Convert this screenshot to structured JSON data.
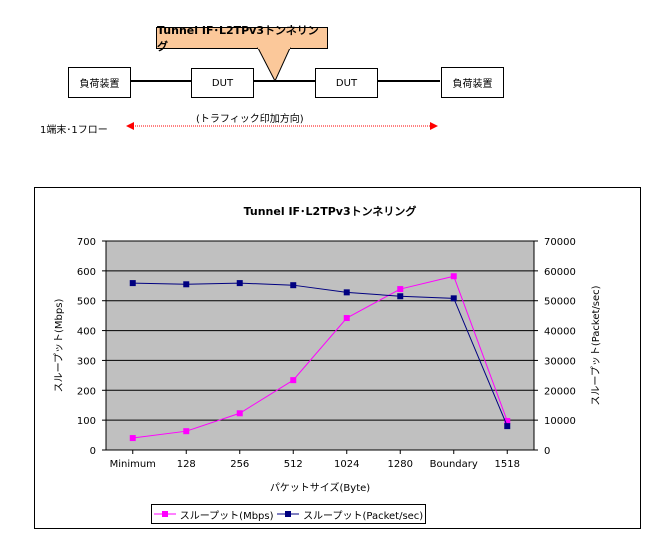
{
  "diagram": {
    "callout_label": "Tunnel IF･L2TPv3トンネリング",
    "nodes": [
      {
        "label": "負荷装置"
      },
      {
        "label": "DUT"
      },
      {
        "label": "DUT"
      },
      {
        "label": "負荷装置"
      }
    ],
    "traffic_direction_label": "(トラフィック印加方向)",
    "flow_label": "1端末･1フロー",
    "arrow_color": "#ff0000",
    "callout_color": "#fbc89a"
  },
  "chart_data": {
    "type": "line",
    "title": "Tunnel IF･L2TPv3トンネリング",
    "xlabel": "パケットサイズ(Byte)",
    "ylabel": "スループット(Mbps)",
    "y2label": "スループット(Packet/sec)",
    "categories": [
      "Minimum",
      "128",
      "256",
      "512",
      "1024",
      "1280",
      "Boundary",
      "1518"
    ],
    "ylim": [
      0,
      700
    ],
    "y2lim": [
      0,
      70000
    ],
    "yticks": [
      "0",
      "100",
      "200",
      "300",
      "400",
      "500",
      "600",
      "700"
    ],
    "y2ticks": [
      "0",
      "10000",
      "20000",
      "30000",
      "40000",
      "50000",
      "60000",
      "70000"
    ],
    "grid": true,
    "plot_background": "#c0c0c0",
    "legend_position": "bottom",
    "series": [
      {
        "name": "スループット(Mbps)",
        "axis": "left",
        "color": "#ff00ff",
        "marker": "square",
        "values": [
          40,
          63,
          123,
          234,
          442,
          539,
          582,
          97
        ]
      },
      {
        "name": "スループット(Packet/sec)",
        "axis": "right",
        "color": "#000080",
        "marker": "square",
        "values": [
          55900,
          55500,
          55900,
          55200,
          52800,
          51500,
          50800,
          8000
        ]
      }
    ]
  }
}
